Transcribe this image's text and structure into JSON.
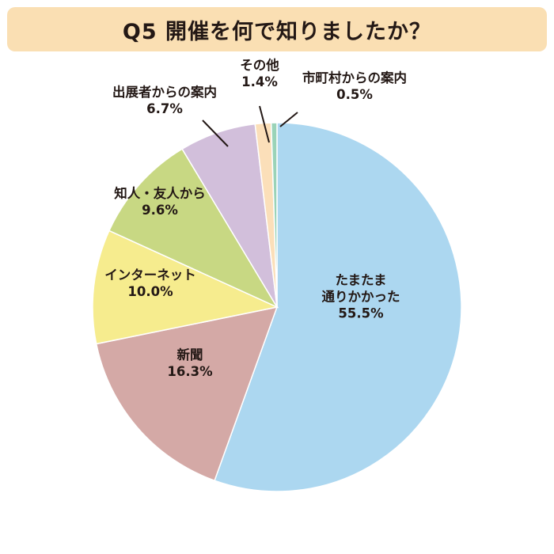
{
  "title": "Q5 開催を何で知りましたか？",
  "chart_data": {
    "type": "pie",
    "title": "Q5 開催を何で知りましたか？",
    "slices": [
      {
        "label": "たまたま通りかかった",
        "label_lines": [
          "たまたま",
          "通りかかった"
        ],
        "value": 55.5,
        "display": "55.5%",
        "color": "#acd7f0"
      },
      {
        "label": "新聞",
        "label_lines": [
          "新聞"
        ],
        "value": 16.3,
        "display": "16.3%",
        "color": "#d4a9a6"
      },
      {
        "label": "インターネット",
        "label_lines": [
          "インターネット"
        ],
        "value": 10.0,
        "display": "10.0%",
        "color": "#f6ec8e"
      },
      {
        "label": "知人・友人から",
        "label_lines": [
          "知人・友人から"
        ],
        "value": 9.6,
        "display": "9.6%",
        "color": "#c8d883"
      },
      {
        "label": "出展者からの案内",
        "label_lines": [
          "出展者からの案内"
        ],
        "value": 6.7,
        "display": "6.7%",
        "color": "#d2bfdb"
      },
      {
        "label": "その他",
        "label_lines": [
          "その他"
        ],
        "value": 1.4,
        "display": "1.4%",
        "color": "#fbdfb9"
      },
      {
        "label": "市町村からの案内",
        "label_lines": [
          "市町村からの案内"
        ],
        "value": 0.5,
        "display": "0.5%",
        "color": "#9ad3b8"
      }
    ]
  }
}
